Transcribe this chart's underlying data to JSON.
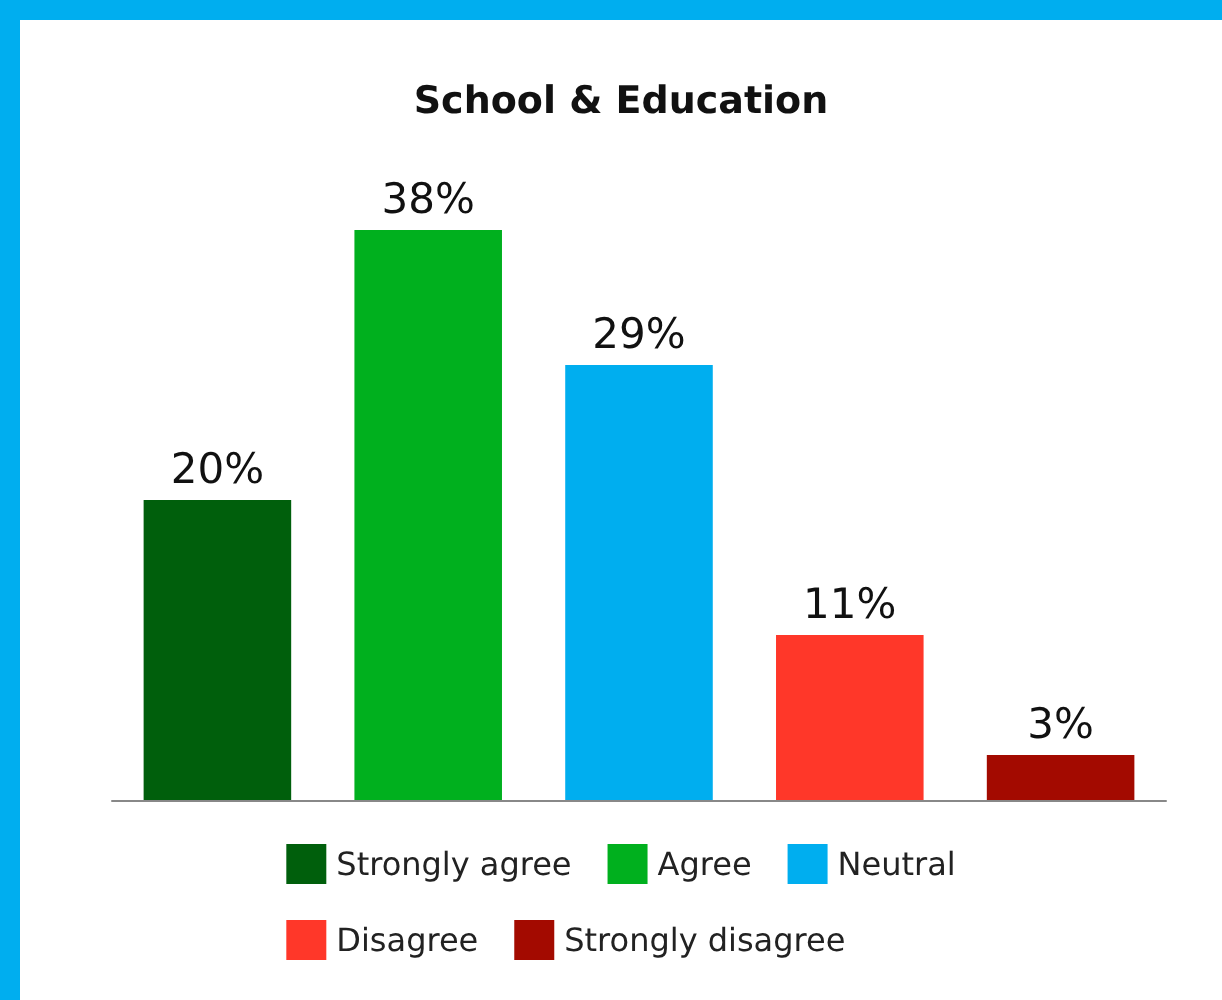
{
  "chart_data": {
    "type": "bar",
    "title": "School & Education",
    "categories": [
      null,
      null,
      null,
      null,
      null
    ],
    "stacked": true,
    "legend": "bottom",
    "tick_labels": false,
    "series": [
      {
        "name": "Strongly agree",
        "color": "#005f0c",
        "values": [
          20,
          null,
          null,
          null,
          null
        ],
        "value_labels": [
          "20%",
          null,
          null,
          null,
          null
        ]
      },
      {
        "name": "Agree",
        "color": "#00b01e",
        "values": [
          null,
          38,
          null,
          null,
          null
        ],
        "value_labels": [
          null,
          "38%",
          null,
          null,
          null
        ]
      },
      {
        "name": "Neutral",
        "color": "#00aeef",
        "values": [
          null,
          null,
          29,
          null,
          null
        ],
        "value_labels": [
          null,
          null,
          "29%",
          null,
          null
        ]
      },
      {
        "name": "Disagree",
        "color": "#ff3729",
        "values": [
          null,
          null,
          null,
          11,
          null
        ],
        "value_labels": [
          null,
          null,
          null,
          "11%",
          null
        ]
      },
      {
        "name": "Strongly disagree",
        "color": "#a30a00",
        "values": [
          null,
          null,
          null,
          null,
          3
        ],
        "value_labels": [
          null,
          null,
          null,
          null,
          "3%"
        ]
      }
    ]
  }
}
